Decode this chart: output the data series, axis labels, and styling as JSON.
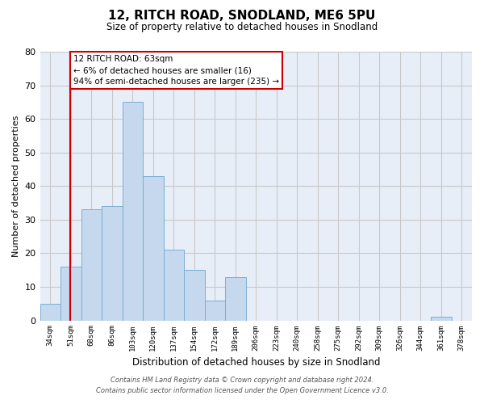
{
  "title": "12, RITCH ROAD, SNODLAND, ME6 5PU",
  "subtitle": "Size of property relative to detached houses in Snodland",
  "xlabel": "Distribution of detached houses by size in Snodland",
  "ylabel": "Number of detached properties",
  "bar_color": "#c5d8ee",
  "bar_edge_color": "#7aaed4",
  "background_color": "#ffffff",
  "plot_bg_color": "#e8eef8",
  "grid_color": "#c8c8c8",
  "bin_labels": [
    "34sqm",
    "51sqm",
    "68sqm",
    "86sqm",
    "103sqm",
    "120sqm",
    "137sqm",
    "154sqm",
    "172sqm",
    "189sqm",
    "206sqm",
    "223sqm",
    "240sqm",
    "258sqm",
    "275sqm",
    "292sqm",
    "309sqm",
    "326sqm",
    "344sqm",
    "361sqm",
    "378sqm"
  ],
  "bar_heights": [
    5,
    16,
    33,
    34,
    65,
    43,
    21,
    15,
    6,
    13,
    0,
    0,
    0,
    0,
    0,
    0,
    0,
    0,
    0,
    1,
    0
  ],
  "ylim": [
    0,
    80
  ],
  "yticks": [
    0,
    10,
    20,
    30,
    40,
    50,
    60,
    70,
    80
  ],
  "property_line_color": "#cc0000",
  "property_line_bin_index": 1,
  "annotation_title": "12 RITCH ROAD: 63sqm",
  "annotation_line1": "← 6% of detached houses are smaller (16)",
  "annotation_line2": "94% of semi-detached houses are larger (235) →",
  "annotation_box_color": "#ffffff",
  "annotation_box_edge": "#cc0000",
  "footer_line1": "Contains HM Land Registry data © Crown copyright and database right 2024.",
  "footer_line2": "Contains public sector information licensed under the Open Government Licence v3.0."
}
